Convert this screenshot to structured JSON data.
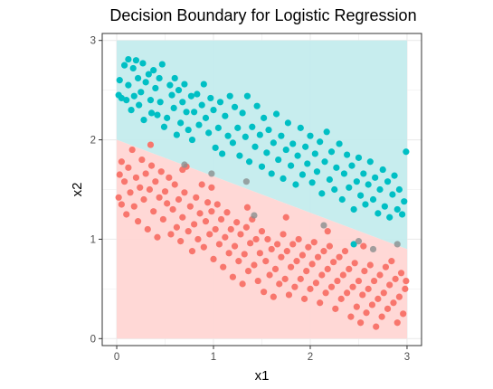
{
  "chart_data": {
    "type": "scatter",
    "title": "Decision Boundary for Logistic Regression",
    "xlabel": "x1",
    "ylabel": "x2",
    "xlim": [
      -0.15,
      3.15
    ],
    "ylim": [
      -0.07,
      3.07
    ],
    "x_ticks": [
      0,
      1,
      2,
      3
    ],
    "y_ticks": [
      0,
      1,
      2,
      3
    ],
    "grid": true,
    "legend": "none",
    "colors": {
      "class_0": "#F8766D",
      "class_1": "#00BFC4",
      "region_0": "#FFD6D4",
      "region_1": "#C4ECED",
      "panel_border": "#333333",
      "grid": "#EBEBEB"
    },
    "decision_boundary": {
      "points": [
        [
          0,
          2.0
        ],
        [
          3,
          0.9
        ]
      ]
    },
    "series": [
      {
        "class": 1,
        "points": [
          [
            0.02,
            2.45
          ],
          [
            0.03,
            2.6
          ],
          [
            0.05,
            2.42
          ],
          [
            0.08,
            2.75
          ],
          [
            0.1,
            2.4
          ],
          [
            0.12,
            2.81
          ],
          [
            0.12,
            2.55
          ],
          [
            0.15,
            2.3
          ],
          [
            0.17,
            2.72
          ],
          [
            0.18,
            2.44
          ],
          [
            0.2,
            2.8
          ],
          [
            0.22,
            2.62
          ],
          [
            0.23,
            2.35
          ],
          [
            0.25,
            2.48
          ],
          [
            0.27,
            2.77
          ],
          [
            0.28,
            2.2
          ],
          [
            0.3,
            2.58
          ],
          [
            0.33,
            2.66
          ],
          [
            0.35,
            2.4
          ],
          [
            0.36,
            2.27
          ],
          [
            0.38,
            2.7
          ],
          [
            0.4,
            2.52
          ],
          [
            0.42,
            2.25
          ],
          [
            0.44,
            2.62
          ],
          [
            0.45,
            2.38
          ],
          [
            0.47,
            2.76
          ],
          [
            0.49,
            2.13
          ],
          [
            0.52,
            2.22
          ],
          [
            0.55,
            2.55
          ],
          [
            0.57,
            2.45
          ],
          [
            0.59,
            2.32
          ],
          [
            0.6,
            2.62
          ],
          [
            0.62,
            2.05
          ],
          [
            0.64,
            2.5
          ],
          [
            0.66,
            2.17
          ],
          [
            0.68,
            2.38
          ],
          [
            0.7,
            2.56
          ],
          [
            0.72,
            2.28
          ],
          [
            0.74,
            2.1
          ],
          [
            0.77,
            2.44
          ],
          [
            0.78,
            2.0
          ],
          [
            0.8,
            2.28
          ],
          [
            0.83,
            2.46
          ],
          [
            0.85,
            2.15
          ],
          [
            0.88,
            2.35
          ],
          [
            0.9,
            2.56
          ],
          [
            0.92,
            2.22
          ],
          [
            0.95,
            2.07
          ],
          [
            0.97,
            2.42
          ],
          [
            1.0,
            2.3
          ],
          [
            1.02,
            1.92
          ],
          [
            1.05,
            2.12
          ],
          [
            1.07,
            2.38
          ],
          [
            1.09,
            1.86
          ],
          [
            1.12,
            2.24
          ],
          [
            1.15,
            2.04
          ],
          [
            1.17,
            2.44
          ],
          [
            1.2,
            1.97
          ],
          [
            1.22,
            2.33
          ],
          [
            1.25,
            2.12
          ],
          [
            1.27,
            1.84
          ],
          [
            1.3,
            2.27
          ],
          [
            1.33,
            2.03
          ],
          [
            1.35,
            2.44
          ],
          [
            1.37,
            1.78
          ],
          [
            1.4,
            2.13
          ],
          [
            1.43,
            1.93
          ],
          [
            1.45,
            2.34
          ],
          [
            1.48,
            2.05
          ],
          [
            1.5,
            1.73
          ],
          [
            1.52,
            2.22
          ],
          [
            1.55,
            1.87
          ],
          [
            1.57,
            2.1
          ],
          [
            1.6,
            1.66
          ],
          [
            1.62,
            1.97
          ],
          [
            1.65,
            2.26
          ],
          [
            1.67,
            1.8
          ],
          [
            1.7,
            2.04
          ],
          [
            1.72,
            1.61
          ],
          [
            1.75,
            1.9
          ],
          [
            1.77,
            2.17
          ],
          [
            1.8,
            1.74
          ],
          [
            1.82,
            1.96
          ],
          [
            1.85,
            1.55
          ],
          [
            1.87,
            1.84
          ],
          [
            1.9,
            2.12
          ],
          [
            1.92,
            1.65
          ],
          [
            1.95,
            1.93
          ],
          [
            1.97,
            1.76
          ],
          [
            2.0,
            2.04
          ],
          [
            2.02,
            1.57
          ],
          [
            2.05,
            1.86
          ],
          [
            2.07,
            1.68
          ],
          [
            2.1,
            1.98
          ],
          [
            2.12,
            1.46
          ],
          [
            2.15,
            1.78
          ],
          [
            2.17,
            2.08
          ],
          [
            2.2,
            1.6
          ],
          [
            2.22,
            1.88
          ],
          [
            2.25,
            1.5
          ],
          [
            2.27,
            1.72
          ],
          [
            2.3,
            1.96
          ],
          [
            2.33,
            1.4
          ],
          [
            2.35,
            1.66
          ],
          [
            2.38,
            1.85
          ],
          [
            2.4,
            1.52
          ],
          [
            2.43,
            1.74
          ],
          [
            2.45,
            1.3
          ],
          [
            2.48,
            1.58
          ],
          [
            2.5,
            1.82
          ],
          [
            2.52,
            1.44
          ],
          [
            2.55,
            1.66
          ],
          [
            2.57,
            1.35
          ],
          [
            2.6,
            1.55
          ],
          [
            2.62,
            1.78
          ],
          [
            2.65,
            1.4
          ],
          [
            2.67,
            1.62
          ],
          [
            2.7,
            1.26
          ],
          [
            2.72,
            1.5
          ],
          [
            2.75,
            1.7
          ],
          [
            2.77,
            1.33
          ],
          [
            2.8,
            1.58
          ],
          [
            2.82,
            1.22
          ],
          [
            2.85,
            1.45
          ],
          [
            2.87,
            1.64
          ],
          [
            2.9,
            1.3
          ],
          [
            2.92,
            1.5
          ],
          [
            2.95,
            1.25
          ],
          [
            2.97,
            1.38
          ],
          [
            2.99,
            1.88
          ],
          [
            2.45,
            0.95
          ]
        ]
      },
      {
        "class": 0,
        "points": [
          [
            0.02,
            1.42
          ],
          [
            0.03,
            1.65
          ],
          [
            0.05,
            1.35
          ],
          [
            0.08,
            1.58
          ],
          [
            0.1,
            1.25
          ],
          [
            0.12,
            1.72
          ],
          [
            0.14,
            1.47
          ],
          [
            0.16,
            1.9
          ],
          [
            0.18,
            1.33
          ],
          [
            0.2,
            1.62
          ],
          [
            0.22,
            1.18
          ],
          [
            0.24,
            1.52
          ],
          [
            0.26,
            1.8
          ],
          [
            0.28,
            1.4
          ],
          [
            0.3,
            1.66
          ],
          [
            0.32,
            1.1
          ],
          [
            0.34,
            1.5
          ],
          [
            0.36,
            1.74
          ],
          [
            0.38,
            1.28
          ],
          [
            0.4,
            1.58
          ],
          [
            0.42,
            1.02
          ],
          [
            0.44,
            1.42
          ],
          [
            0.46,
            1.68
          ],
          [
            0.48,
            1.2
          ],
          [
            0.5,
            1.48
          ],
          [
            0.52,
            1.36
          ],
          [
            0.54,
            1.62
          ],
          [
            0.56,
            1.05
          ],
          [
            0.58,
            1.3
          ],
          [
            0.6,
            1.55
          ],
          [
            0.62,
            1.12
          ],
          [
            0.64,
            1.4
          ],
          [
            0.66,
            0.98
          ],
          [
            0.68,
            1.22
          ],
          [
            0.7,
            1.47
          ],
          [
            0.72,
            1.73
          ],
          [
            0.74,
            1.08
          ],
          [
            0.76,
            1.33
          ],
          [
            0.78,
            0.88
          ],
          [
            0.8,
            1.15
          ],
          [
            0.82,
            1.42
          ],
          [
            0.84,
            1.0
          ],
          [
            0.86,
            1.26
          ],
          [
            0.88,
            1.55
          ],
          [
            0.9,
            0.92
          ],
          [
            0.92,
            1.18
          ],
          [
            0.94,
            1.37
          ],
          [
            0.96,
            1.05
          ],
          [
            0.98,
            1.28
          ],
          [
            1.0,
            0.8
          ],
          [
            1.02,
            1.1
          ],
          [
            1.04,
            1.35
          ],
          [
            1.06,
            0.95
          ],
          [
            1.08,
            1.2
          ],
          [
            1.1,
            0.72
          ],
          [
            1.12,
            1.02
          ],
          [
            1.14,
            1.27
          ],
          [
            1.16,
            0.86
          ],
          [
            1.18,
            1.1
          ],
          [
            1.2,
            0.62
          ],
          [
            1.22,
            0.93
          ],
          [
            1.24,
            1.17
          ],
          [
            1.26,
            0.78
          ],
          [
            1.28,
            1.05
          ],
          [
            1.3,
            0.55
          ],
          [
            1.32,
            0.85
          ],
          [
            1.34,
            1.12
          ],
          [
            1.36,
            0.68
          ],
          [
            1.38,
            0.96
          ],
          [
            1.4,
            1.2
          ],
          [
            1.42,
            0.74
          ],
          [
            1.44,
            1.0
          ],
          [
            1.46,
            0.58
          ],
          [
            1.48,
            0.86
          ],
          [
            1.5,
            1.08
          ],
          [
            1.52,
            0.47
          ],
          [
            1.54,
            0.78
          ],
          [
            1.56,
            1.0
          ],
          [
            1.58,
            0.64
          ],
          [
            1.6,
            0.9
          ],
          [
            1.62,
            0.42
          ],
          [
            1.64,
            0.7
          ],
          [
            1.66,
            0.95
          ],
          [
            1.68,
            0.55
          ],
          [
            1.7,
            0.82
          ],
          [
            1.72,
            1.05
          ],
          [
            1.74,
            0.6
          ],
          [
            1.76,
            0.88
          ],
          [
            1.78,
            0.44
          ],
          [
            1.8,
            0.72
          ],
          [
            1.82,
            0.95
          ],
          [
            1.84,
            0.52
          ],
          [
            1.86,
            0.78
          ],
          [
            1.88,
            1.0
          ],
          [
            1.9,
            0.6
          ],
          [
            1.92,
            0.84
          ],
          [
            1.94,
            0.4
          ],
          [
            1.96,
            0.68
          ],
          [
            1.98,
            0.92
          ],
          [
            2.0,
            0.5
          ],
          [
            2.02,
            0.75
          ],
          [
            2.04,
            0.97
          ],
          [
            2.06,
            0.56
          ],
          [
            2.08,
            0.82
          ],
          [
            2.1,
            0.36
          ],
          [
            2.12,
            0.64
          ],
          [
            2.14,
            0.88
          ],
          [
            2.16,
            0.46
          ],
          [
            2.18,
            0.7
          ],
          [
            2.2,
            0.93
          ],
          [
            2.22,
            0.52
          ],
          [
            2.24,
            0.77
          ],
          [
            2.26,
            0.3
          ],
          [
            2.28,
            0.58
          ],
          [
            2.3,
            0.82
          ],
          [
            2.32,
            0.4
          ],
          [
            2.34,
            0.64
          ],
          [
            2.36,
            0.88
          ],
          [
            2.38,
            0.46
          ],
          [
            2.4,
            0.7
          ],
          [
            2.42,
            0.22
          ],
          [
            2.44,
            0.52
          ],
          [
            2.46,
            0.76
          ],
          [
            2.48,
            0.32
          ],
          [
            2.5,
            0.58
          ],
          [
            2.52,
            0.16
          ],
          [
            2.54,
            0.44
          ],
          [
            2.56,
            0.68
          ],
          [
            2.58,
            0.26
          ],
          [
            2.6,
            0.5
          ],
          [
            2.62,
            0.74
          ],
          [
            2.64,
            0.34
          ],
          [
            2.66,
            0.58
          ],
          [
            2.68,
            0.12
          ],
          [
            2.7,
            0.4
          ],
          [
            2.72,
            0.64
          ],
          [
            2.74,
            0.22
          ],
          [
            2.76,
            0.46
          ],
          [
            2.78,
            0.72
          ],
          [
            2.8,
            0.3
          ],
          [
            2.82,
            0.54
          ],
          [
            2.84,
            0.78
          ],
          [
            2.86,
            0.36
          ],
          [
            2.88,
            0.6
          ],
          [
            2.9,
            0.16
          ],
          [
            2.92,
            0.42
          ],
          [
            2.94,
            0.66
          ],
          [
            2.96,
            0.25
          ],
          [
            2.98,
            0.5
          ],
          [
            2.99,
            0.58
          ],
          [
            0.05,
            1.78
          ],
          [
            0.35,
            1.95
          ],
          [
            0.68,
            1.7
          ],
          [
            0.98,
            1.52
          ],
          [
            1.35,
            1.32
          ],
          [
            1.75,
            1.22
          ],
          [
            2.18,
            1.08
          ],
          [
            2.55,
            0.93
          ]
        ]
      },
      {
        "class": "boundary",
        "points": [
          [
            0.7,
            1.75
          ],
          [
            0.98,
            1.66
          ],
          [
            1.34,
            1.58
          ],
          [
            1.42,
            1.24
          ],
          [
            2.14,
            1.14
          ],
          [
            2.5,
            0.98
          ],
          [
            2.65,
            0.9
          ],
          [
            2.9,
            0.95
          ]
        ]
      }
    ]
  }
}
